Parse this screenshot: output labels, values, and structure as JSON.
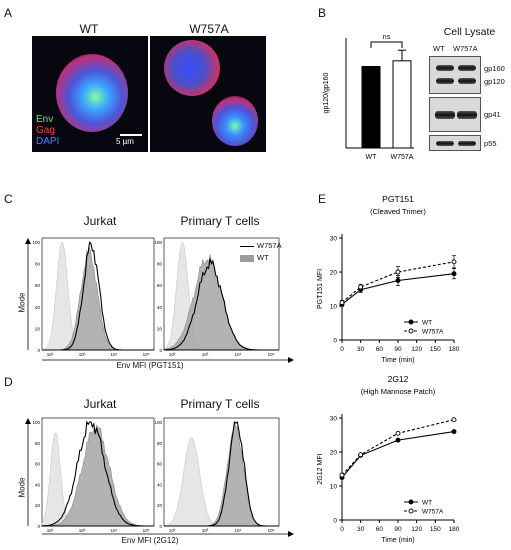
{
  "panels": {
    "a": "A",
    "b": "B",
    "c": "C",
    "d": "D",
    "e": "E"
  },
  "microscopy": {
    "left_title": "WT",
    "right_title": "W757A",
    "legend": [
      {
        "label": "Env",
        "color": "#7fe07f"
      },
      {
        "label": "Gag",
        "color": "#ff4040"
      },
      {
        "label": "DAPI",
        "color": "#4a7cff"
      }
    ],
    "scale_bar": "5 µm"
  },
  "lysate": {
    "title": "Cell Lysate",
    "lanes": [
      "WT",
      "W757A"
    ],
    "bands": [
      "gp160",
      "gp120",
      "gp41",
      "p55"
    ]
  },
  "flow": {
    "c_left_title": "Jurkat",
    "c_right_title": "Primary T cells",
    "c_xlabel": "Env MFI (PGT151)",
    "d_left_title": "Jurkat",
    "d_right_title": "Primary T cells",
    "d_xlabel": "Env MFI (2G12)",
    "ylabel": "Mode",
    "legend": [
      {
        "label": "W757A"
      },
      {
        "label": "WT"
      }
    ],
    "yticks": [
      "0",
      "20",
      "40",
      "60",
      "80",
      "100"
    ],
    "xticks": [
      "10²",
      "10³",
      "10⁴",
      "10⁵"
    ]
  },
  "chart_data": [
    {
      "type": "bar",
      "title": "",
      "xlabel": "",
      "ylabel": "gp120/gp160",
      "categories": [
        "WT",
        "W757A"
      ],
      "values": [
        100,
        107
      ],
      "errors": [
        0,
        13
      ],
      "annotation": "ns",
      "ylim": [
        0,
        135
      ]
    },
    {
      "type": "line",
      "title": "PGT151",
      "subtitle": "(Cleaved Trimer)",
      "xlabel": "Time (min)",
      "ylabel": "PGT151 MFI",
      "x": [
        0,
        30,
        90,
        180
      ],
      "xticks": [
        0,
        30,
        60,
        90,
        120,
        150,
        180
      ],
      "yticks": [
        0,
        10,
        20,
        30
      ],
      "xlim": [
        0,
        180
      ],
      "ylim": [
        0,
        30
      ],
      "series": [
        {
          "name": "WT",
          "values": [
            10.5,
            14.8,
            17.5,
            19.5
          ],
          "errors": [
            0.6,
            0.8,
            1.5,
            1.5
          ]
        },
        {
          "name": "W757A",
          "values": [
            11,
            15.6,
            20,
            23
          ],
          "errors": [
            0.6,
            0.8,
            1.6,
            1.8
          ]
        }
      ],
      "legend_position": "bottom-right"
    },
    {
      "type": "line",
      "title": "2G12",
      "subtitle": "(High Mannose Patch)",
      "xlabel": "Time (min)",
      "ylabel": "2G12 MFI",
      "x": [
        0,
        30,
        90,
        180
      ],
      "xticks": [
        0,
        30,
        60,
        90,
        120,
        150,
        180
      ],
      "yticks": [
        0,
        10,
        20,
        30
      ],
      "xlim": [
        0,
        180
      ],
      "ylim": [
        0,
        30
      ],
      "series": [
        {
          "name": "WT",
          "values": [
            12.5,
            19,
            23.5,
            26
          ]
        },
        {
          "name": "W757A",
          "values": [
            13.2,
            19.2,
            25.5,
            29.5
          ]
        }
      ],
      "legend_position": "bottom-right"
    }
  ]
}
